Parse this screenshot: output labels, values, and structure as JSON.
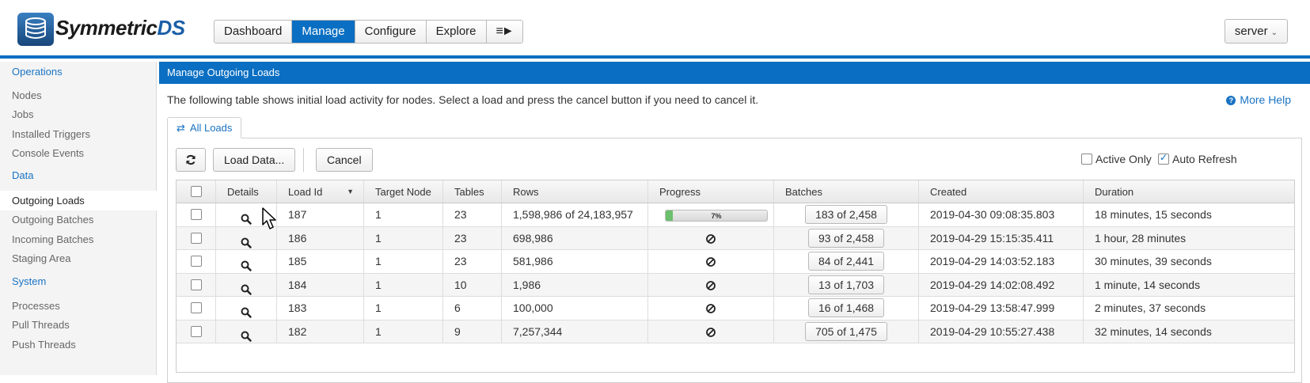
{
  "app": {
    "logo_word": "Symmetric",
    "logo_suffix": "DS"
  },
  "nav": {
    "items": [
      "Dashboard",
      "Manage",
      "Configure",
      "Explore"
    ],
    "menu_glyph": "≡►",
    "active": "Manage"
  },
  "server": {
    "label": "server"
  },
  "sidebar": {
    "sections": [
      {
        "title": "Operations",
        "items": [
          "Nodes",
          "Jobs",
          "Installed Triggers",
          "Console Events"
        ]
      },
      {
        "title": "Data",
        "items": [
          "Outgoing Loads",
          "Outgoing Batches",
          "Incoming Batches",
          "Staging Area"
        ]
      },
      {
        "title": "System",
        "items": [
          "Processes",
          "Pull Threads",
          "Push Threads"
        ]
      }
    ],
    "active_item": "Outgoing Loads"
  },
  "main": {
    "title": "Manage Outgoing Loads",
    "description": "The following table shows initial load activity for nodes. Select a load and press the cancel button if you need to cancel it.",
    "more_help": "More Help",
    "tab_label": "All Loads",
    "toolbar": {
      "load_data": "Load Data...",
      "cancel": "Cancel",
      "active_only": "Active Only",
      "auto_refresh": "Auto Refresh"
    },
    "options": {
      "active_only_checked": false,
      "auto_refresh_checked": true
    }
  },
  "table": {
    "columns": [
      "Details",
      "Load Id",
      "Target Node",
      "Tables",
      "Rows",
      "Progress",
      "Batches",
      "Created",
      "Duration"
    ],
    "rows": [
      {
        "load_id": "187",
        "target": "1",
        "tables": "23",
        "rows": "1,598,986 of 24,183,957",
        "progress": 7,
        "progress_label": "7%",
        "batches": "183 of 2,458",
        "created": "2019-04-30 09:08:35.803",
        "duration": "18 minutes, 15 seconds"
      },
      {
        "load_id": "186",
        "target": "1",
        "tables": "23",
        "rows": "698,986",
        "progress": null,
        "progress_label": "",
        "batches": "93 of 2,458",
        "created": "2019-04-29 15:15:35.411",
        "duration": "1 hour, 28 minutes"
      },
      {
        "load_id": "185",
        "target": "1",
        "tables": "23",
        "rows": "581,986",
        "progress": null,
        "progress_label": "",
        "batches": "84 of 2,441",
        "created": "2019-04-29 14:03:52.183",
        "duration": "30 minutes, 39 seconds"
      },
      {
        "load_id": "184",
        "target": "1",
        "tables": "10",
        "rows": "1,986",
        "progress": null,
        "progress_label": "",
        "batches": "13 of 1,703",
        "created": "2019-04-29 14:02:08.492",
        "duration": "1 minute, 14 seconds"
      },
      {
        "load_id": "183",
        "target": "1",
        "tables": "6",
        "rows": "100,000",
        "progress": null,
        "progress_label": "",
        "batches": "16 of 1,468",
        "created": "2019-04-29 13:58:47.999",
        "duration": "2 minutes, 37 seconds"
      },
      {
        "load_id": "182",
        "target": "1",
        "tables": "9",
        "rows": "7,257,344",
        "progress": null,
        "progress_label": "",
        "batches": "705 of 1,475",
        "created": "2019-04-29 10:55:27.438",
        "duration": "32 minutes, 14 seconds"
      }
    ]
  },
  "colors": {
    "accent": "#0a6fc2",
    "progress": "#6cbf6c"
  }
}
